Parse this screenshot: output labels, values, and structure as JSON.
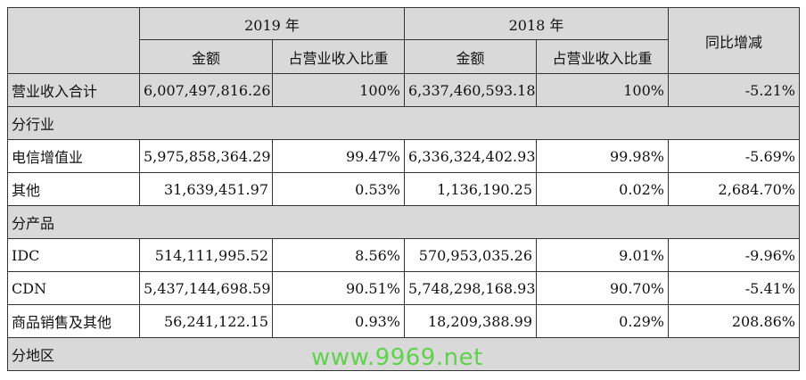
{
  "header": {
    "year_2019": "2019 年",
    "year_2018": "2018 年",
    "yoy": "同比增减",
    "amount_2019": "金额",
    "share_2019": "占营业收入比重",
    "amount_2018": "金额",
    "share_2018": "占营业收入比重"
  },
  "total": {
    "label": "营业收入合计",
    "amount_2019": "6,007,497,816.26",
    "share_2019": "100%",
    "amount_2018": "6,337,460,593.18",
    "share_2018": "100%",
    "yoy": "-5.21%"
  },
  "sections": {
    "by_industry": "分行业",
    "by_product": "分产品",
    "by_region": "分地区"
  },
  "rows": [
    {
      "label": "电信增值业",
      "amount_2019": "5,975,858,364.29",
      "share_2019": "99.47%",
      "amount_2018": "6,336,324,402.93",
      "share_2018": "99.98%",
      "yoy": "-5.69%"
    },
    {
      "label": "其他",
      "amount_2019": "31,639,451.97",
      "share_2019": "0.53%",
      "amount_2018": "1,136,190.25",
      "share_2018": "0.02%",
      "yoy": "2,684.70%"
    },
    {
      "label": "IDC",
      "amount_2019": "514,111,995.52",
      "share_2019": "8.56%",
      "amount_2018": "570,953,035.26",
      "share_2018": "9.01%",
      "yoy": "-9.96%"
    },
    {
      "label": "CDN",
      "amount_2019": "5,437,144,698.59",
      "share_2019": "90.51%",
      "amount_2018": "5,748,298,168.93",
      "share_2018": "90.70%",
      "yoy": "-5.41%"
    },
    {
      "label": "商品销售及其他",
      "amount_2019": "56,241,122.15",
      "share_2019": "0.93%",
      "amount_2018": "18,209,388.99",
      "share_2018": "0.29%",
      "yoy": "208.86%"
    }
  ],
  "watermark": {
    "text": "www.9969.net",
    "color": "#37d01c"
  }
}
